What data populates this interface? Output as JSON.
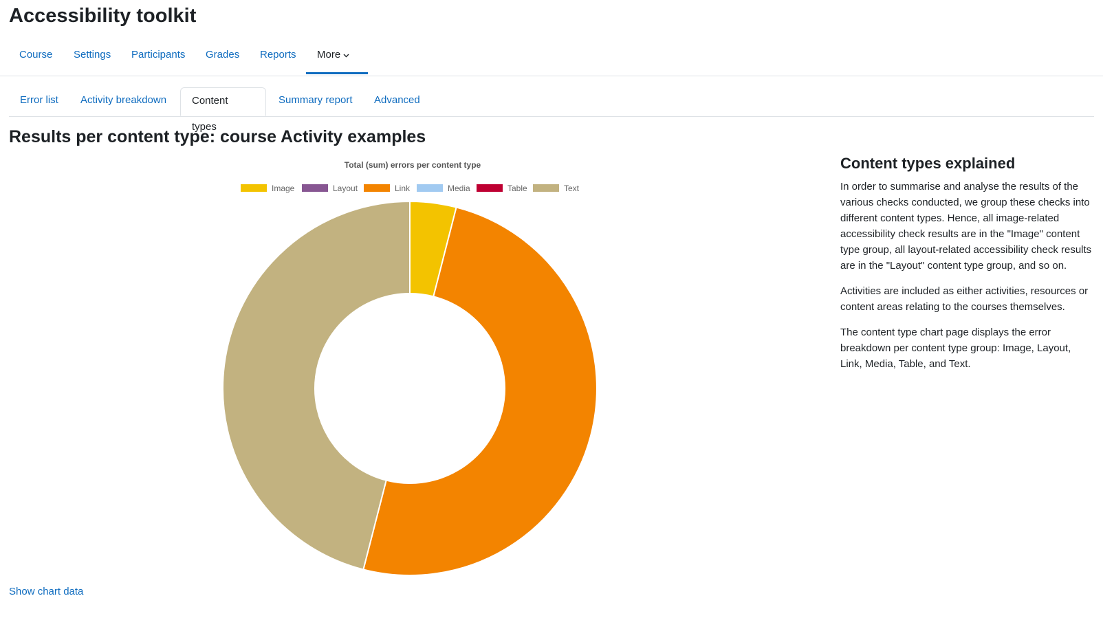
{
  "page": {
    "title": "Accessibility toolkit"
  },
  "primary_nav": {
    "items": [
      {
        "label": "Course"
      },
      {
        "label": "Settings"
      },
      {
        "label": "Participants"
      },
      {
        "label": "Grades"
      },
      {
        "label": "Reports"
      },
      {
        "label": "More"
      }
    ],
    "active": "More"
  },
  "secondary_tabs": {
    "items": [
      {
        "label": "Error list"
      },
      {
        "label": "Activity breakdown"
      },
      {
        "label": "Content types"
      },
      {
        "label": "Summary report"
      },
      {
        "label": "Advanced"
      }
    ],
    "active": "Content types"
  },
  "section": {
    "title": "Results per content type: course Activity examples"
  },
  "chart_data": {
    "type": "pie",
    "title": "Total (sum) errors per content type",
    "categories": [
      "Image",
      "Layout",
      "Link",
      "Media",
      "Table",
      "Text"
    ],
    "values": [
      2,
      0,
      25,
      0,
      0,
      23
    ],
    "colors": [
      "#f3c300",
      "#875692",
      "#f38400",
      "#a1caf1",
      "#be0032",
      "#c2b280"
    ],
    "donut": true,
    "legend": "top"
  },
  "chart_toggle": {
    "label": "Show chart data"
  },
  "explain": {
    "heading": "Content types explained",
    "paragraphs": [
      "In order to summarise and analyse the results of the various checks conducted, we group these checks into different content types. Hence, all image-related accessibility check results are in the \"Image\" content type group, all layout-related accessibility check results are in the \"Layout\" content type group, and so on.",
      "Activities are included as either activities, resources or content areas relating to the courses themselves.",
      "The content type chart page displays the error breakdown per content type group: Image, Layout, Link, Media, Table, and Text."
    ]
  }
}
